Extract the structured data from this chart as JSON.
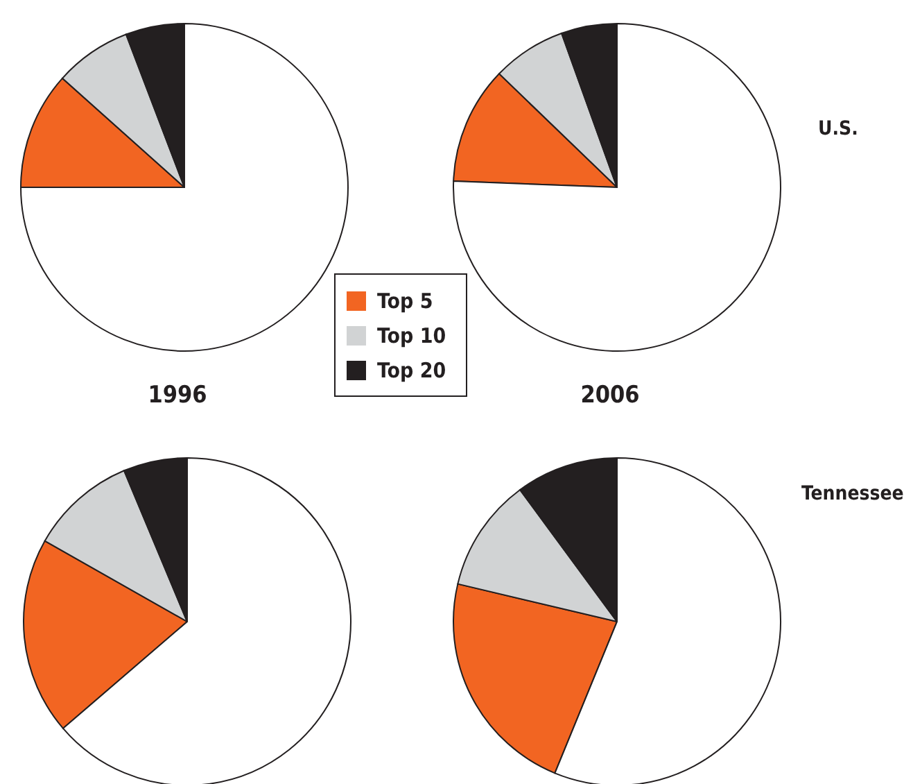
{
  "chart_data": [
    {
      "type": "pie",
      "title": "1996",
      "categories": [
        "Top 5",
        "Top 10",
        "Top 20",
        null
      ],
      "values": [
        11.6,
        7.6,
        5.8,
        75
      ],
      "colors": [
        "#f26522",
        "#d1d3d4",
        "#231f20",
        "#ffffff"
      ],
      "legend": "bottom right"
    },
    {
      "type": "pie",
      "title": "2006",
      "values": [
        11.6,
        7.3,
        5.5,
        75.6
      ],
      "colors": [
        "#f26522",
        "#d1d3d4",
        "#231f20",
        "#ffffff"
      ],
      "annotations": [
        "U.S."
      ]
    },
    {
      "type": "pie",
      "values": [
        19.5,
        10.5,
        6.3,
        63.7
      ],
      "colors": [
        "#f26522",
        "#d1d3d4",
        "#231f20",
        "#ffffff"
      ]
    },
    {
      "type": "pie",
      "values": [
        22.5,
        11.2,
        10.1,
        56.2
      ],
      "colors": [
        "#f26522",
        "#d1d3d4",
        "#231f20",
        "#ffffff"
      ],
      "annotations": [
        "Tennessee"
      ]
    }
  ]
}
